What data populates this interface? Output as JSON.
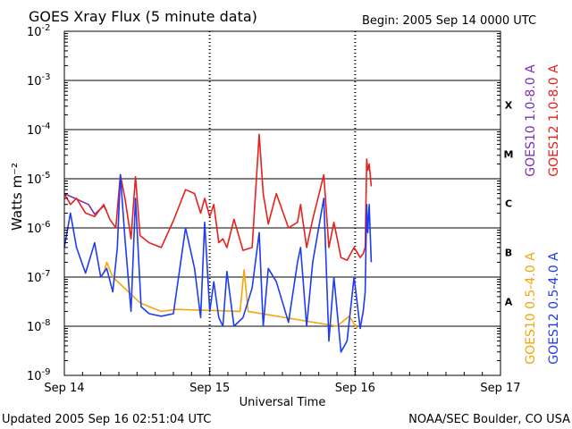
{
  "header": {
    "title": "GOES Xray Flux (5 minute data)",
    "begin": "Begin:  2005 Sep 14 0000 UTC"
  },
  "footer": {
    "updated": "Updated 2005 Sep 16 02:51:04 UTC",
    "credit": "NOAA/SEC Boulder, CO USA"
  },
  "chart_data": {
    "type": "line",
    "title": "GOES Xray Flux (5 minute data)",
    "xlabel": "Universal Time",
    "ylabel": "Watts m⁻²",
    "yscale": "log",
    "ylim": [
      1e-09,
      0.01
    ],
    "xlim": [
      "2005-09-14 00:00",
      "2005-09-17 00:00"
    ],
    "x_ticks": [
      "Sep 14",
      "Sep 15",
      "Sep 16",
      "Sep 17"
    ],
    "y_ticks": [
      {
        "value": 0.01,
        "base": "10",
        "exp": "-2"
      },
      {
        "value": 0.001,
        "base": "10",
        "exp": "-3"
      },
      {
        "value": 0.0001,
        "base": "10",
        "exp": "-4"
      },
      {
        "value": 1e-05,
        "base": "10",
        "exp": "-5"
      },
      {
        "value": 1e-06,
        "base": "10",
        "exp": "-6"
      },
      {
        "value": 1e-07,
        "base": "10",
        "exp": "-7"
      },
      {
        "value": 1e-08,
        "base": "10",
        "exp": "-8"
      },
      {
        "value": 1e-09,
        "base": "10",
        "exp": "-9"
      }
    ],
    "flare_classes": [
      {
        "label": "X",
        "value": 0.0001
      },
      {
        "label": "M",
        "value": 1e-05
      },
      {
        "label": "C",
        "value": 1e-06
      },
      {
        "label": "B",
        "value": 1e-07
      },
      {
        "label": "A",
        "value": 1e-08
      }
    ],
    "grid": "horizontal",
    "legend_position": "right",
    "series": [
      {
        "name": "GOES10 1.0-8.0 A",
        "color": "#7a2fb4",
        "x": [
          "2005-09-14 00:00",
          "2005-09-14 04:00",
          "2005-09-14 05:00",
          "2005-09-14 06:30",
          "2005-09-14 07:00"
        ],
        "y": [
          5e-06,
          3e-06,
          1.9e-06,
          2.8e-06,
          2.2e-06
        ]
      },
      {
        "name": "GOES12 1.0-8.0 A",
        "color": "#e8201c",
        "x": [
          "2005-09-14 00:00",
          "2005-09-14 01:00",
          "2005-09-14 02:00",
          "2005-09-14 03:30",
          "2005-09-14 05:00",
          "2005-09-14 06:30",
          "2005-09-14 07:30",
          "2005-09-14 08:30",
          "2005-09-14 09:15",
          "2005-09-14 10:00",
          "2005-09-14 11:00",
          "2005-09-14 11:45",
          "2005-09-14 12:30",
          "2005-09-14 14:00",
          "2005-09-14 16:00",
          "2005-09-14 18:00",
          "2005-09-14 20:00",
          "2005-09-14 21:30",
          "2005-09-14 22:30",
          "2005-09-14 23:10",
          "2005-09-15 00:00",
          "2005-09-15 00:40",
          "2005-09-15 01:30",
          "2005-09-15 02:10",
          "2005-09-15 02:50",
          "2005-09-15 04:00",
          "2005-09-15 05:30",
          "2005-09-15 07:00",
          "2005-09-15 08:10",
          "2005-09-15 08:50",
          "2005-09-15 09:40",
          "2005-09-15 11:00",
          "2005-09-15 13:00",
          "2005-09-15 14:30",
          "2005-09-15 15:00",
          "2005-09-15 16:00",
          "2005-09-15 17:00",
          "2005-09-15 18:50",
          "2005-09-15 19:40",
          "2005-09-15 20:30",
          "2005-09-15 21:40",
          "2005-09-15 22:40",
          "2005-09-15 23:50",
          "2005-09-16 00:50",
          "2005-09-16 01:20",
          "2005-09-16 01:40",
          "2005-09-16 01:55",
          "2005-09-16 02:05",
          "2005-09-16 02:20",
          "2005-09-16 02:40"
        ],
        "y": [
          5e-06,
          3e-06,
          4e-06,
          2e-06,
          1.7e-06,
          3e-06,
          1.5e-06,
          1e-06,
          1.2e-05,
          4e-06,
          6e-07,
          1.1e-05,
          7e-07,
          5e-07,
          4e-07,
          1.4e-06,
          6e-06,
          5e-06,
          2e-06,
          4e-06,
          1.7e-06,
          3e-06,
          5e-07,
          6e-07,
          4e-07,
          1.5e-06,
          3.5e-07,
          4e-07,
          8e-05,
          5e-06,
          1.2e-06,
          5e-06,
          1e-06,
          1.3e-06,
          3e-06,
          4e-07,
          1.5e-06,
          1.2e-05,
          4e-07,
          1.3e-06,
          2.5e-07,
          2.2e-07,
          4e-07,
          2.5e-07,
          3e-07,
          4e-07,
          2.5e-05,
          1.5e-05,
          2e-05,
          7e-06
        ]
      },
      {
        "name": "GOES10 0.5-4.0 A",
        "color": "#f5a50a",
        "x": [
          "2005-09-14 06:30",
          "2005-09-14 07:00",
          "2005-09-14 08:00",
          "2005-09-14 12:30",
          "2005-09-14 14:00",
          "2005-09-14 16:00",
          "2005-09-14 18:30",
          "2005-09-15 05:00",
          "2005-09-15 05:40",
          "2005-09-15 06:20",
          "2005-09-15 21:00",
          "2005-09-15 23:00",
          "2005-09-16 00:20"
        ],
        "y": [
          1.2e-07,
          2e-07,
          1e-07,
          3e-08,
          2.5e-08,
          2e-08,
          2.2e-08,
          2e-08,
          1.4e-07,
          2e-08,
          1e-08,
          1.6e-08,
          9e-09
        ]
      },
      {
        "name": "GOES12 0.5-4.0 A",
        "color": "#1e3cf0",
        "x": [
          "2005-09-14 00:00",
          "2005-09-14 01:00",
          "2005-09-14 02:00",
          "2005-09-14 03:30",
          "2005-09-14 05:00",
          "2005-09-14 06:00",
          "2005-09-14 07:00",
          "2005-09-14 08:00",
          "2005-09-14 08:45",
          "2005-09-14 09:15",
          "2005-09-14 10:00",
          "2005-09-14 11:00",
          "2005-09-14 11:45",
          "2005-09-14 12:40",
          "2005-09-14 14:00",
          "2005-09-14 16:00",
          "2005-09-14 18:00",
          "2005-09-14 20:00",
          "2005-09-14 21:30",
          "2005-09-14 22:30",
          "2005-09-14 23:10",
          "2005-09-15 00:00",
          "2005-09-15 00:40",
          "2005-09-15 01:30",
          "2005-09-15 02:10",
          "2005-09-15 02:50",
          "2005-09-15 04:00",
          "2005-09-15 05:30",
          "2005-09-15 07:00",
          "2005-09-15 08:10",
          "2005-09-15 08:50",
          "2005-09-15 09:40",
          "2005-09-15 11:00",
          "2005-09-15 13:00",
          "2005-09-15 14:30",
          "2005-09-15 15:00",
          "2005-09-15 16:00",
          "2005-09-15 17:00",
          "2005-09-15 18:50",
          "2005-09-15 19:40",
          "2005-09-15 20:30",
          "2005-09-15 21:40",
          "2005-09-15 22:40",
          "2005-09-15 23:50",
          "2005-09-16 00:50",
          "2005-09-16 01:20",
          "2005-09-16 01:40",
          "2005-09-16 01:55",
          "2005-09-16 02:05",
          "2005-09-16 02:20",
          "2005-09-16 02:40"
        ],
        "y": [
          4e-07,
          2e-06,
          4e-07,
          1.2e-07,
          5e-07,
          1e-07,
          1.5e-07,
          5e-08,
          4e-07,
          1.2e-05,
          6e-07,
          2e-08,
          4e-06,
          2.5e-08,
          1.8e-08,
          1.6e-08,
          1.8e-08,
          1e-06,
          1.5e-07,
          1.5e-08,
          1.3e-06,
          2e-08,
          8e-08,
          1.5e-08,
          1e-08,
          1.3e-07,
          1e-08,
          1.5e-08,
          6e-08,
          8e-07,
          1e-08,
          1.5e-07,
          8e-08,
          1.2e-08,
          2e-07,
          4e-07,
          1e-08,
          2e-07,
          4e-06,
          5e-09,
          1e-07,
          3e-09,
          5e-09,
          1e-07,
          9e-09,
          2e-08,
          5e-08,
          3e-06,
          8e-07,
          3e-06,
          2e-07
        ]
      }
    ]
  }
}
